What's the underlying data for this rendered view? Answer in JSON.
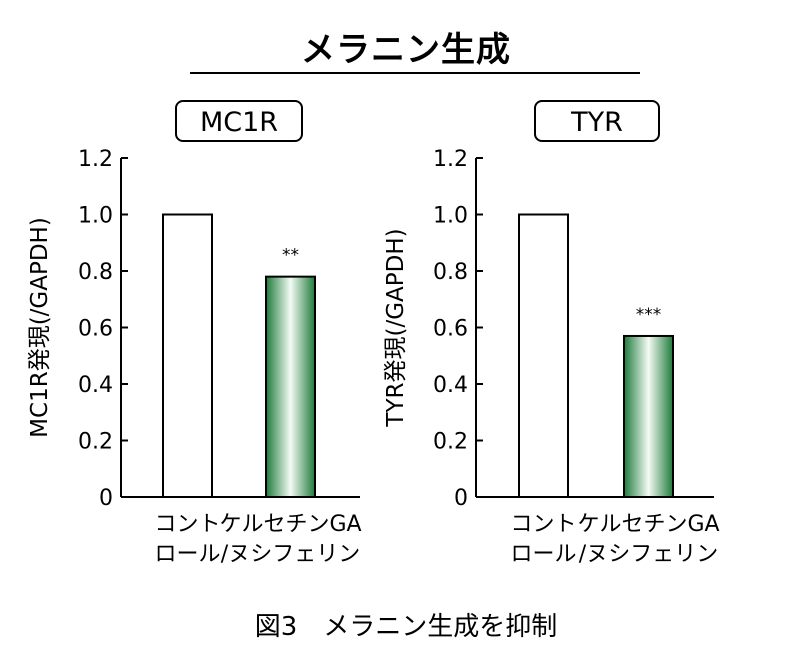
{
  "heading": "メラニン生成",
  "caption": "図3　メラニン生成を抑制",
  "chart_data": [
    {
      "type": "bar",
      "panel_label": "MC1R",
      "ylabel": "MC1R発現(/GAPDH)",
      "ylim": [
        0,
        1.2
      ],
      "yticks": [
        "0",
        "0.2",
        "0.4",
        "0.6",
        "0.8",
        "1.0",
        "1.2"
      ],
      "categories": [
        [
          "コント",
          "ロール"
        ],
        [
          "ケルセチンGA",
          "/ヌシフェリン"
        ]
      ],
      "values": [
        1.0,
        0.78
      ],
      "significance": [
        "",
        "**"
      ],
      "bar_colors": [
        "#ffffff",
        "#1e7a3a"
      ]
    },
    {
      "type": "bar",
      "panel_label": "TYR",
      "ylabel": "TYR発現(/GAPDH)",
      "ylim": [
        0,
        1.2
      ],
      "yticks": [
        "0",
        "0.2",
        "0.4",
        "0.6",
        "0.8",
        "1.0",
        "1.2"
      ],
      "categories": [
        [
          "コント",
          "ロール"
        ],
        [
          "ケルセチンGA",
          "/ヌシフェリン"
        ]
      ],
      "values": [
        1.0,
        0.57
      ],
      "significance": [
        "",
        "***"
      ],
      "bar_colors": [
        "#ffffff",
        "#1e7a3a"
      ]
    }
  ]
}
